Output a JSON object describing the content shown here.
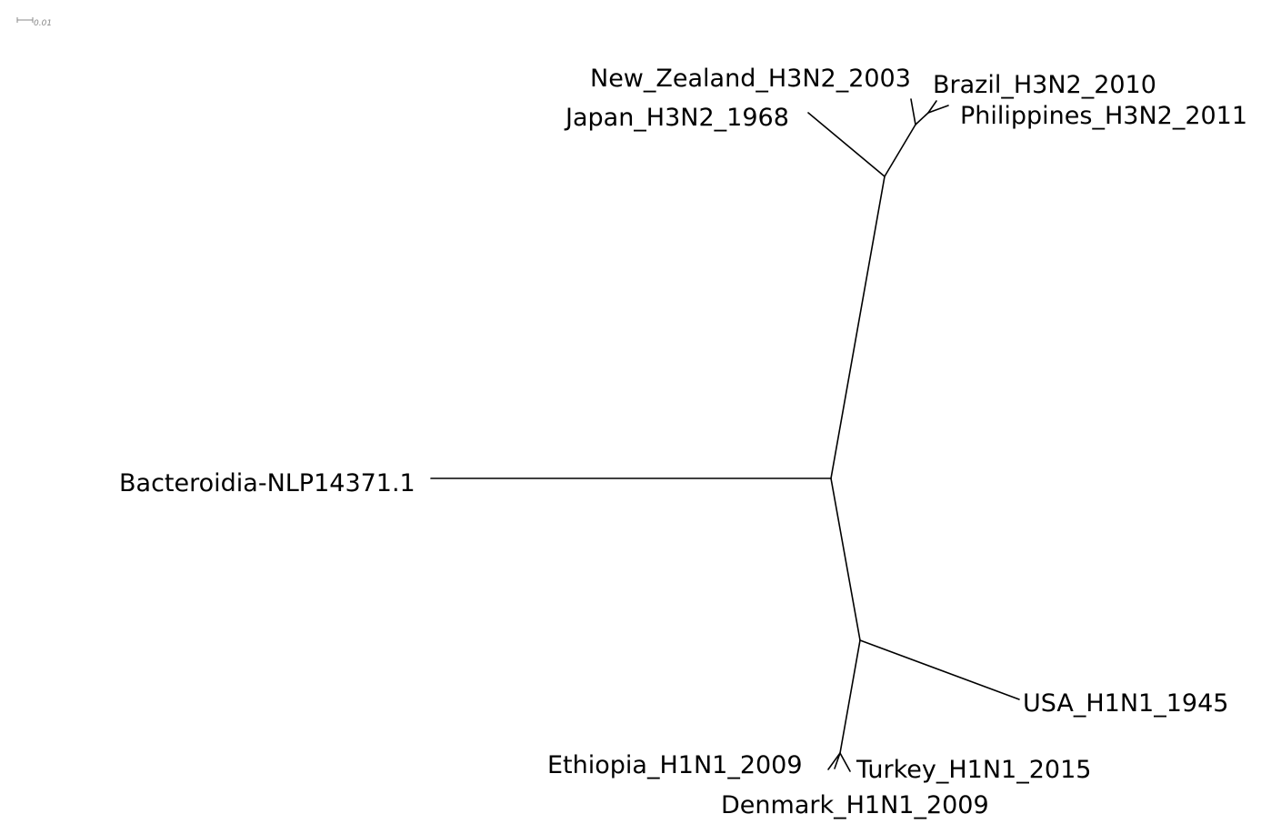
{
  "tree": {
    "layout": "unrooted",
    "scale_bar": {
      "label": "0.01"
    },
    "leaves": {
      "new_zealand": "New_Zealand_H3N2_2003",
      "brazil": "Brazil_H3N2_2010",
      "philippines": "Philippines_H3N2_2011",
      "japan": "Japan_H3N2_1968",
      "bacteroidia": "Bacteroidia-NLP14371.1",
      "usa": "USA_H1N1_1945",
      "ethiopia": "Ethiopia_H1N1_2009",
      "turkey": "Turkey_H1N1_2015",
      "denmark": "Denmark_H1N1_2009"
    },
    "colors": {
      "branch": "#000000",
      "text": "#000000",
      "scale": "#888888"
    }
  }
}
